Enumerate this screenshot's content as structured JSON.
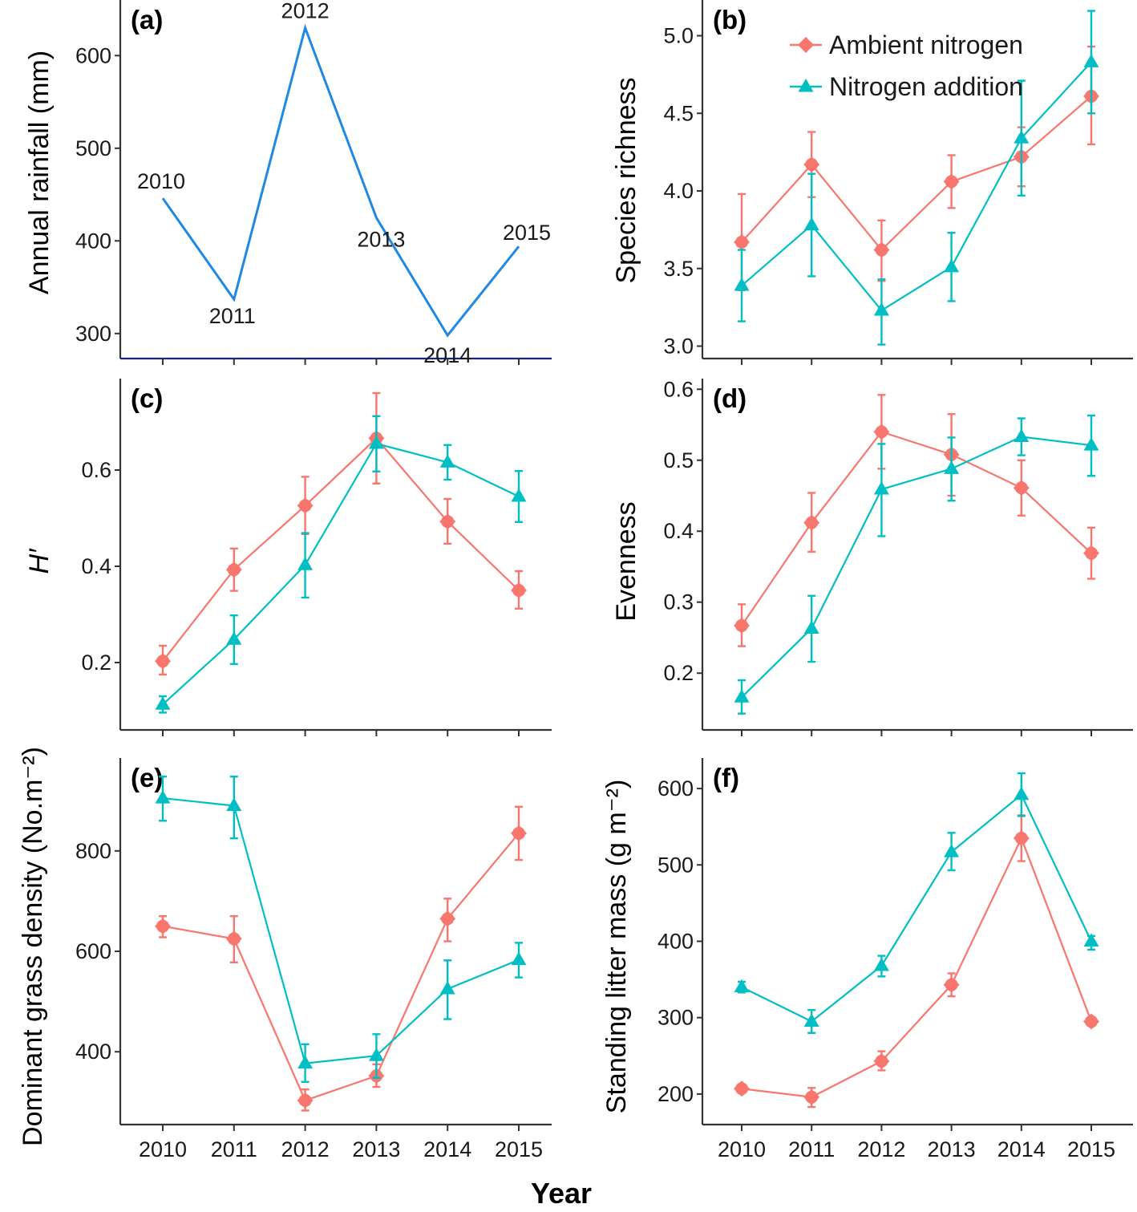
{
  "figure": {
    "shared_xlabel": "Year",
    "colors": {
      "ambient": "#F8766D",
      "addition": "#00BFC4",
      "rainfall": "#1E88E5",
      "axis": "#333333"
    }
  },
  "chart_data": [
    {
      "id": "a",
      "type": "line",
      "panel_label": "(a)",
      "title": "",
      "xlabel": "",
      "ylabel": "Annual rainfall (mm)",
      "x": [
        "2010",
        "2011",
        "2012",
        "2013",
        "2014",
        "2015"
      ],
      "ylim": [
        273,
        660
      ],
      "yticks": [
        300,
        400,
        500,
        600
      ],
      "show_xtick_labels": false,
      "point_labels": [
        "2010",
        "2011",
        "2012",
        "2013",
        "2014",
        "2015"
      ],
      "series": [
        {
          "name": "Annual rainfall",
          "color": "#1E88E5",
          "values": [
            446,
            337,
            630,
            425,
            298,
            394
          ]
        }
      ],
      "grid": false,
      "legend": "none"
    },
    {
      "id": "b",
      "type": "line",
      "panel_label": "(b)",
      "xlabel": "",
      "ylabel": "Species richness",
      "x": [
        "2010",
        "2011",
        "2012",
        "2013",
        "2014",
        "2015"
      ],
      "ylim": [
        2.92,
        5.23
      ],
      "yticks": [
        3.0,
        3.5,
        4.0,
        4.5,
        5.0
      ],
      "ytick_labels": [
        "3.0",
        "3.5",
        "4.0",
        "4.5",
        "5.0"
      ],
      "show_xtick_labels": false,
      "series": [
        {
          "name": "Ambient nitrogen",
          "marker": "circle",
          "color": "#F8766D",
          "values": [
            3.67,
            4.17,
            3.62,
            4.06,
            4.22,
            4.61
          ],
          "err_low": [
            3.36,
            3.96,
            3.42,
            3.89,
            4.03,
            4.3
          ],
          "err_high": [
            3.98,
            4.38,
            3.81,
            4.23,
            4.41,
            4.93
          ]
        },
        {
          "name": "Nitrogen addition",
          "marker": "triangle",
          "color": "#00BFC4",
          "values": [
            3.39,
            3.78,
            3.23,
            3.51,
            4.34,
            4.83
          ],
          "err_low": [
            3.16,
            3.45,
            3.01,
            3.29,
            3.97,
            4.5
          ],
          "err_high": [
            3.62,
            4.11,
            3.43,
            3.73,
            4.71,
            5.16
          ]
        }
      ],
      "legend": "top-right",
      "grid": false
    },
    {
      "id": "c",
      "type": "line",
      "panel_label": "(c)",
      "xlabel": "",
      "ylabel": "H′",
      "x": [
        "2010",
        "2011",
        "2012",
        "2013",
        "2014",
        "2015"
      ],
      "ylim": [
        0.06,
        0.79
      ],
      "yticks": [
        0.2,
        0.4,
        0.6
      ],
      "ytick_labels": [
        "0.2",
        "0.4",
        "0.6"
      ],
      "show_xtick_labels": false,
      "series": [
        {
          "name": "Ambient nitrogen",
          "marker": "circle",
          "color": "#F8766D",
          "values": [
            0.203,
            0.393,
            0.526,
            0.666,
            0.493,
            0.35
          ],
          "err_low": [
            0.175,
            0.349,
            0.467,
            0.572,
            0.447,
            0.312
          ],
          "err_high": [
            0.235,
            0.437,
            0.586,
            0.76,
            0.54,
            0.39
          ]
        },
        {
          "name": "Nitrogen addition",
          "marker": "triangle",
          "color": "#00BFC4",
          "values": [
            0.113,
            0.248,
            0.403,
            0.655,
            0.616,
            0.545
          ],
          "err_low": [
            0.096,
            0.197,
            0.335,
            0.597,
            0.58,
            0.492
          ],
          "err_high": [
            0.13,
            0.298,
            0.469,
            0.712,
            0.652,
            0.598
          ]
        }
      ],
      "legend": "none",
      "grid": false
    },
    {
      "id": "d",
      "type": "line",
      "panel_label": "(d)",
      "xlabel": "",
      "ylabel": "Evenness",
      "x": [
        "2010",
        "2011",
        "2012",
        "2013",
        "2014",
        "2015"
      ],
      "ylim": [
        0.12,
        0.615
      ],
      "yticks": [
        0.2,
        0.3,
        0.4,
        0.5,
        0.6
      ],
      "ytick_labels": [
        "0.2",
        "0.3",
        "0.4",
        "0.5",
        "0.6"
      ],
      "show_xtick_labels": false,
      "series": [
        {
          "name": "Ambient nitrogen",
          "marker": "circle",
          "color": "#F8766D",
          "values": [
            0.267,
            0.412,
            0.54,
            0.508,
            0.461,
            0.369
          ],
          "err_low": [
            0.238,
            0.371,
            0.488,
            0.45,
            0.422,
            0.333
          ],
          "err_high": [
            0.297,
            0.454,
            0.592,
            0.565,
            0.5,
            0.405
          ]
        },
        {
          "name": "Nitrogen addition",
          "marker": "triangle",
          "color": "#00BFC4",
          "values": [
            0.166,
            0.263,
            0.459,
            0.488,
            0.533,
            0.521
          ],
          "err_low": [
            0.143,
            0.216,
            0.393,
            0.443,
            0.507,
            0.478
          ],
          "err_high": [
            0.19,
            0.309,
            0.523,
            0.532,
            0.559,
            0.563
          ]
        }
      ],
      "legend": "none",
      "grid": false
    },
    {
      "id": "e",
      "type": "line",
      "panel_label": "(e)",
      "xlabel": "",
      "ylabel": "Dominant grass density (No.m⁻²)",
      "x": [
        "2010",
        "2011",
        "2012",
        "2013",
        "2014",
        "2015"
      ],
      "ylim": [
        255,
        985
      ],
      "yticks": [
        400,
        600,
        800
      ],
      "ytick_labels": [
        "400",
        "600",
        "800"
      ],
      "show_xtick_labels": true,
      "series": [
        {
          "name": "Ambient nitrogen",
          "marker": "circle",
          "color": "#F8766D",
          "values": [
            650,
            625,
            303,
            352,
            665,
            835
          ],
          "err_low": [
            628,
            578,
            283,
            330,
            620,
            782
          ],
          "err_high": [
            670,
            670,
            325,
            375,
            705,
            888
          ]
        },
        {
          "name": "Nitrogen addition",
          "marker": "triangle",
          "color": "#00BFC4",
          "values": [
            905,
            890,
            377,
            392,
            525,
            583
          ],
          "err_low": [
            860,
            825,
            340,
            348,
            465,
            548
          ],
          "err_high": [
            948,
            948,
            415,
            435,
            582,
            617
          ]
        }
      ],
      "legend": "none",
      "grid": false
    },
    {
      "id": "f",
      "type": "line",
      "panel_label": "(f)",
      "xlabel": "",
      "ylabel": "Standing litter mass (g m⁻²)",
      "x": [
        "2010",
        "2011",
        "2012",
        "2013",
        "2014",
        "2015"
      ],
      "ylim": [
        160,
        640
      ],
      "yticks": [
        200,
        300,
        400,
        500,
        600
      ],
      "ytick_labels": [
        "200",
        "300",
        "400",
        "500",
        "600"
      ],
      "show_xtick_labels": true,
      "series": [
        {
          "name": "Ambient nitrogen",
          "marker": "circle",
          "color": "#F8766D",
          "values": [
            207,
            196,
            243,
            343,
            535,
            295
          ],
          "err_low": [
            203,
            183,
            231,
            328,
            505,
            290
          ],
          "err_high": [
            212,
            208,
            256,
            358,
            565,
            300
          ]
        },
        {
          "name": "Nitrogen addition",
          "marker": "triangle",
          "color": "#00BFC4",
          "values": [
            340,
            295,
            368,
            517,
            592,
            400
          ],
          "err_low": [
            333,
            280,
            354,
            493,
            564,
            389
          ],
          "err_high": [
            347,
            310,
            381,
            542,
            620,
            407
          ]
        }
      ],
      "legend": "none",
      "grid": false
    }
  ]
}
